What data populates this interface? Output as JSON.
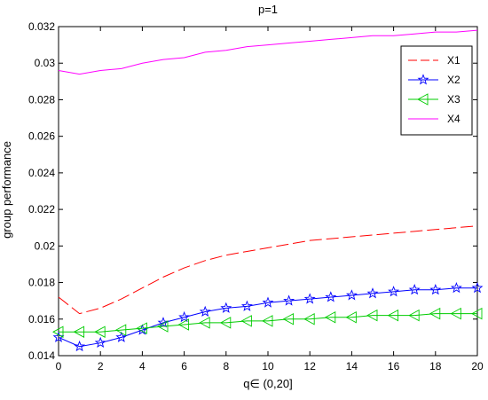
{
  "chart_data": {
    "type": "line",
    "title": "p=1",
    "xlabel": "q∈ (0,20]",
    "ylabel": "group performance",
    "xlim": [
      0,
      20
    ],
    "ylim": [
      0.014,
      0.032
    ],
    "grid": false,
    "legend_position": "top-right",
    "x_ticks": [
      "0",
      "2",
      "4",
      "6",
      "8",
      "10",
      "12",
      "14",
      "16",
      "18",
      "20"
    ],
    "y_ticks": [
      "0.014",
      "0.016",
      "0.018",
      "0.02",
      "0.022",
      "0.024",
      "0.026",
      "0.028",
      "0.03",
      "0.032"
    ],
    "x": [
      0,
      1,
      2,
      3,
      4,
      5,
      6,
      7,
      8,
      9,
      10,
      11,
      12,
      13,
      14,
      15,
      16,
      17,
      18,
      19,
      20
    ],
    "series": [
      {
        "name": "X1",
        "color": "#ff0000",
        "line_style": "dashed",
        "marker": "none",
        "values": [
          0.0172,
          0.0163,
          0.0166,
          0.0171,
          0.0177,
          0.0183,
          0.0188,
          0.0192,
          0.0195,
          0.0197,
          0.0199,
          0.0201,
          0.0203,
          0.0204,
          0.0205,
          0.0206,
          0.0207,
          0.0208,
          0.0209,
          0.021,
          0.0211
        ]
      },
      {
        "name": "X2",
        "color": "#0000ff",
        "line_style": "solid",
        "marker": "star",
        "values": [
          0.015,
          0.0145,
          0.0147,
          0.015,
          0.0154,
          0.0158,
          0.0161,
          0.0164,
          0.0166,
          0.0167,
          0.0169,
          0.017,
          0.0171,
          0.0172,
          0.0173,
          0.0174,
          0.0175,
          0.0176,
          0.0176,
          0.0177,
          0.0177
        ]
      },
      {
        "name": "X3",
        "color": "#00cc00",
        "line_style": "solid",
        "marker": "triangle-left",
        "values": [
          0.0153,
          0.0153,
          0.0153,
          0.0154,
          0.0155,
          0.0156,
          0.0157,
          0.0158,
          0.0158,
          0.0159,
          0.0159,
          0.016,
          0.016,
          0.0161,
          0.0161,
          0.0162,
          0.0162,
          0.0162,
          0.0163,
          0.0163,
          0.0163
        ]
      },
      {
        "name": "X4",
        "color": "#ff00ff",
        "line_style": "solid",
        "marker": "none",
        "values": [
          0.0296,
          0.0294,
          0.0296,
          0.0297,
          0.03,
          0.0302,
          0.0303,
          0.0306,
          0.0307,
          0.0309,
          0.031,
          0.0311,
          0.0312,
          0.0313,
          0.0314,
          0.0315,
          0.0315,
          0.0316,
          0.0317,
          0.0317,
          0.0318
        ]
      }
    ]
  }
}
